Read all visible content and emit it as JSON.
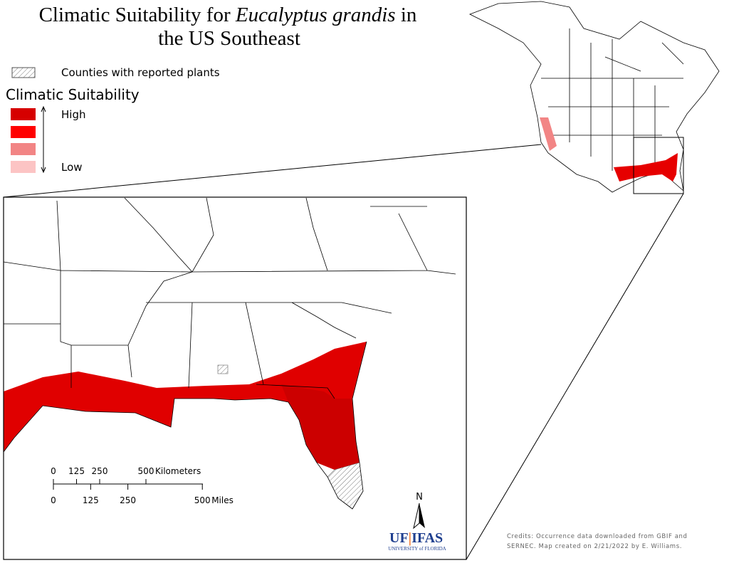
{
  "title": {
    "prefix": "Climatic Suitability for ",
    "species": "Eucalyptus grandis",
    "suffix": " in",
    "line2": "the US Southeast"
  },
  "legend": {
    "hatch_label": "Counties with reported plants",
    "heading": "Climatic Suitability",
    "high": "High",
    "low": "Low"
  },
  "scale_bar": {
    "km_ticks": [
      0,
      125,
      250,
      500
    ],
    "km_unit": "Kilometers",
    "mile_ticks": [
      0,
      125,
      250,
      500
    ],
    "mile_unit": "Miles"
  },
  "north_arrow": "N",
  "logo": {
    "left": "UF",
    "right": "IFAS",
    "subtitle": "UNIVERSITY of FLORIDA"
  },
  "credits": [
    "Credits: Occurrence data downloaded from GBIF and",
    "SERNEC. Map created on 2/21/2022 by E. Williams."
  ]
}
